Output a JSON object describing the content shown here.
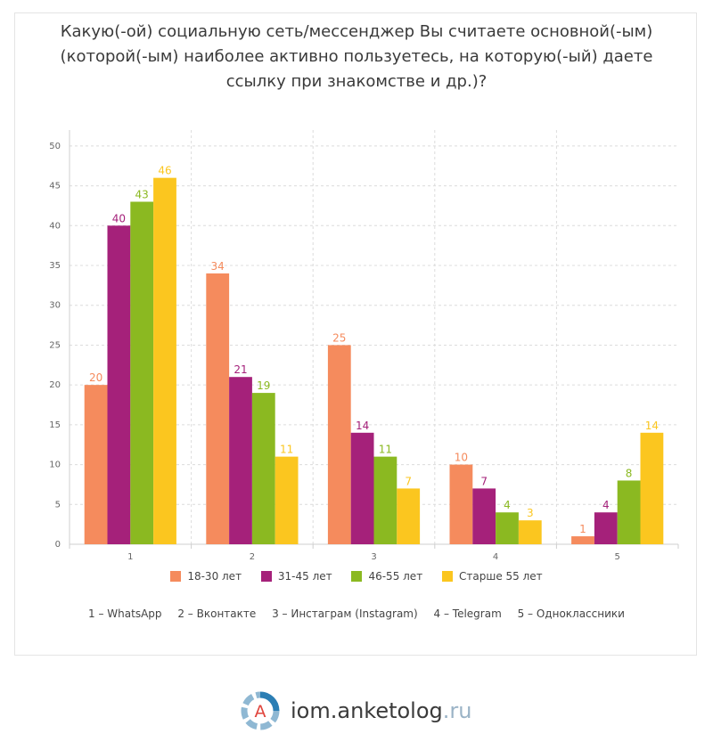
{
  "chart_data": {
    "type": "bar",
    "title_lines": [
      "Какую(-ой) социальную сеть/мессенджер Вы считаете основной(-ым)",
      "(которой(-ым) наиболее активно пользуетесь, на которую(-ый) даете",
      "ссылку при знакомстве и др.)?"
    ],
    "categories": [
      "1",
      "2",
      "3",
      "4",
      "5"
    ],
    "ylim": [
      0,
      52
    ],
    "yticks": [
      "0",
      "5",
      "10",
      "15",
      "20",
      "25",
      "30",
      "35",
      "40",
      "45",
      "50"
    ],
    "grid": true,
    "legend_position": "bottom",
    "series": [
      {
        "name": "18-30 лет",
        "color": "#f58b5d",
        "values": [
          20,
          34,
          25,
          10,
          1
        ]
      },
      {
        "name": "31-45 лет",
        "color": "#a5217a",
        "values": [
          40,
          21,
          14,
          7,
          4
        ]
      },
      {
        "name": "46-55 лет",
        "color": "#8bb921",
        "values": [
          43,
          19,
          11,
          4,
          8
        ]
      },
      {
        "name": "Старше 55 лет",
        "color": "#fbc61f",
        "values": [
          46,
          11,
          7,
          3,
          14
        ]
      }
    ],
    "category_notes": [
      "1 – WhatsApp",
      "2 – Вконтакте",
      "3 – Инстаграм (Instagram)",
      "4 – Telegram",
      "5 – Одноклассники"
    ]
  },
  "brand": {
    "logo_letter": "А",
    "name": "iom.anketolog",
    "tld": ".ru"
  }
}
